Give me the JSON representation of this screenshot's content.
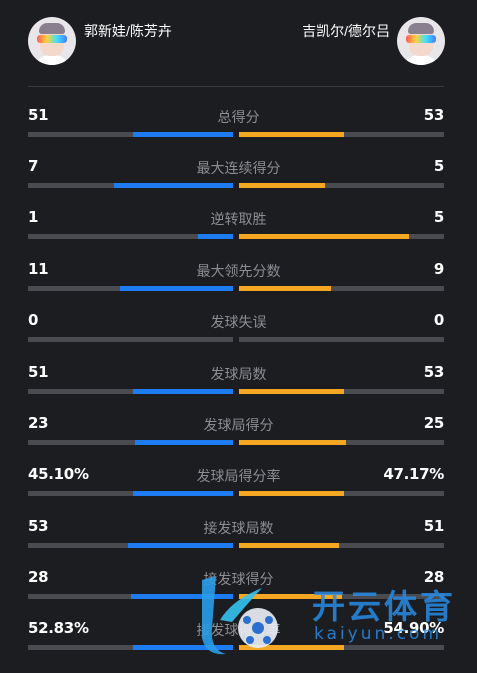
{
  "header": {
    "left_player": "郭新娃/陈芳卉",
    "right_player": "吉凯尔/德尔吕",
    "avatar_icon": "player-avatar-icon"
  },
  "colors": {
    "background": "#1c1d21",
    "left_bar": "#1e7cf2",
    "right_bar": "#f5a623",
    "track": "#4a4b50",
    "label": "#8c8d92"
  },
  "stats": [
    {
      "label": "总得分",
      "left": "51",
      "right": "53",
      "left_fill": 0.49,
      "right_fill": 0.51
    },
    {
      "label": "最大连续得分",
      "left": "7",
      "right": "5",
      "left_fill": 0.58,
      "right_fill": 0.42
    },
    {
      "label": "逆转取胜",
      "left": "1",
      "right": "5",
      "left_fill": 0.17,
      "right_fill": 0.83
    },
    {
      "label": "最大领先分数",
      "left": "11",
      "right": "9",
      "left_fill": 0.55,
      "right_fill": 0.45
    },
    {
      "label": "发球失误",
      "left": "0",
      "right": "0",
      "left_fill": 0,
      "right_fill": 0
    },
    {
      "label": "发球局数",
      "left": "51",
      "right": "53",
      "left_fill": 0.49,
      "right_fill": 0.51
    },
    {
      "label": "发球局得分",
      "left": "23",
      "right": "25",
      "left_fill": 0.48,
      "right_fill": 0.52
    },
    {
      "label": "发球局得分率",
      "left": "45.10%",
      "right": "47.17%",
      "left_fill": 0.49,
      "right_fill": 0.51
    },
    {
      "label": "接发球局数",
      "left": "53",
      "right": "51",
      "left_fill": 0.51,
      "right_fill": 0.49
    },
    {
      "label": "接发球得分",
      "left": "28",
      "right": "28",
      "left_fill": 0.5,
      "right_fill": 0.5
    },
    {
      "label": "接发球得分率",
      "left": "52.83%",
      "right": "54.90%",
      "left_fill": 0.49,
      "right_fill": 0.51
    }
  ],
  "watermark": {
    "title": "开云体育",
    "subtitle": "kaiyun.com"
  }
}
